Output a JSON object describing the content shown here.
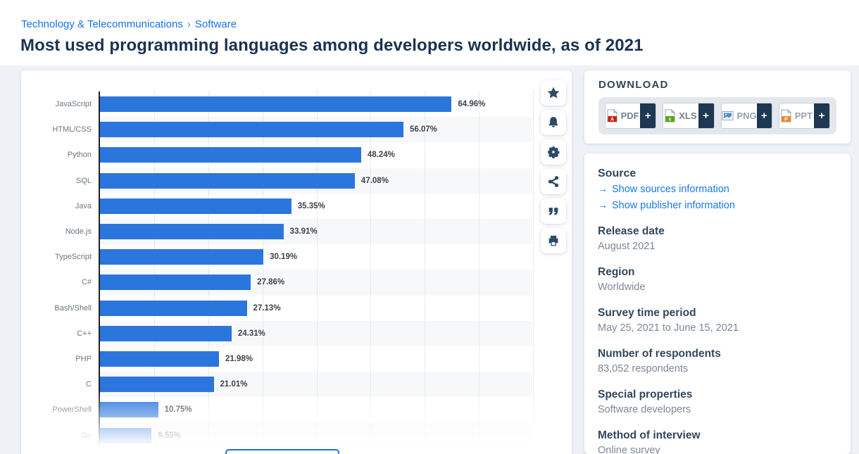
{
  "breadcrumb": {
    "category": "Technology & Telecommunications",
    "separator": "›",
    "subcategory": "Software"
  },
  "page_title": "Most used programming languages among developers worldwide, as of 2021",
  "chart_data": {
    "type": "bar",
    "orientation": "horizontal",
    "title": "Most used programming languages among developers worldwide, as of 2021",
    "categories": [
      "JavaScript",
      "HTML/CSS",
      "Python",
      "SQL",
      "Java",
      "Node.js",
      "TypeScript",
      "C#",
      "Bash/Shell",
      "C++",
      "PHP",
      "C",
      "PowerShell",
      "Go"
    ],
    "values": [
      64.96,
      56.07,
      48.24,
      47.08,
      35.35,
      33.91,
      30.19,
      27.86,
      27.13,
      24.31,
      21.98,
      21.01,
      10.75,
      9.55
    ],
    "unit": "%",
    "xlim": [
      0,
      80
    ],
    "gridline_step": 10,
    "grid": "vertical-dotted",
    "bar_color": "#2b76dd",
    "note": "last row (Go) fades out at chart bottom edge"
  },
  "toolbar": {
    "icons": [
      "star",
      "bell",
      "gear",
      "share",
      "cite",
      "print"
    ]
  },
  "download": {
    "heading": "DOWNLOAD",
    "plus": "+",
    "buttons": [
      {
        "label": "PDF",
        "icon": "pdf-file-icon",
        "icon_color": "#cc1f10",
        "label_color": "#75828f"
      },
      {
        "label": "XLS",
        "icon": "xls-file-icon",
        "icon_color": "#5ba617",
        "label_color": "#75828f"
      },
      {
        "label": "PNG",
        "icon": "png-file-icon",
        "icon_color": "#4a8fd3",
        "label_color": "#9aa4af"
      },
      {
        "label": "PPT",
        "icon": "ppt-file-icon",
        "icon_color": "#e8892a",
        "label_color": "#9aa4af"
      }
    ],
    "plus_bg": "#1d3850"
  },
  "details": {
    "source_heading": "Source",
    "link_arrow": "→",
    "links": [
      {
        "label": "Show sources information"
      },
      {
        "label": "Show publisher information"
      }
    ],
    "fields": [
      {
        "label": "Release date",
        "value": "August 2021"
      },
      {
        "label": "Region",
        "value": "Worldwide"
      },
      {
        "label": "Survey time period",
        "value": "May 25, 2021 to June 15, 2021"
      },
      {
        "label": "Number of respondents",
        "value": "83,052 respondents"
      },
      {
        "label": "Special properties",
        "value": "Software developers"
      },
      {
        "label": "Method of interview",
        "value": "Online survey"
      }
    ]
  },
  "colors": {
    "link_blue": "#1673e6",
    "title_navy": "#1b3350",
    "heading_navy": "#33475c",
    "bar_blue": "#2b76dd",
    "plus_tab_navy": "#1d3850",
    "page_bg": "#eef1f5"
  }
}
